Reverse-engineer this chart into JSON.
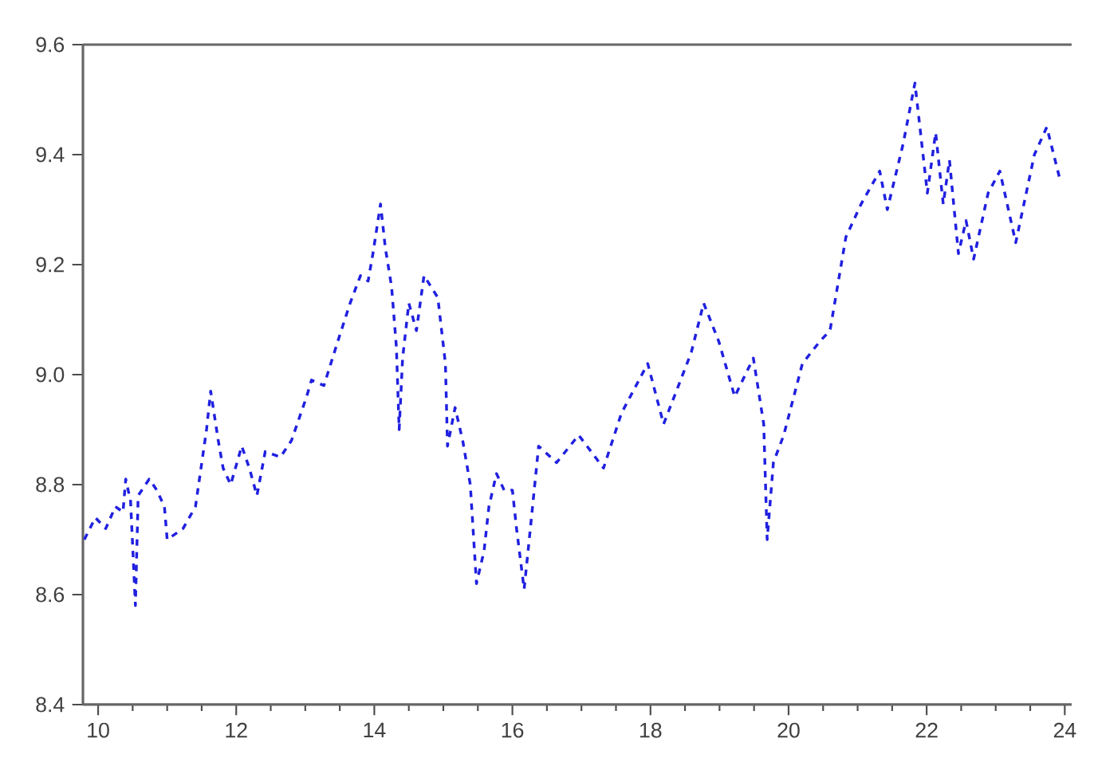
{
  "chart_data": {
    "type": "line",
    "x": [
      9.8,
      9.96,
      10.11,
      10.25,
      10.36,
      10.4,
      10.47,
      10.54,
      10.58,
      10.74,
      10.85,
      10.96,
      11.0,
      11.23,
      11.41,
      11.57,
      11.63,
      11.74,
      11.81,
      11.92,
      12.08,
      12.19,
      12.3,
      12.42,
      12.64,
      12.8,
      13.02,
      13.09,
      13.27,
      13.47,
      13.65,
      13.8,
      13.91,
      13.98,
      14.09,
      14.16,
      14.25,
      14.32,
      14.36,
      14.41,
      14.5,
      14.61,
      14.72,
      14.92,
      15.03,
      15.06,
      15.17,
      15.28,
      15.39,
      15.48,
      15.59,
      15.66,
      15.77,
      15.88,
      16.0,
      16.06,
      16.17,
      16.26,
      16.38,
      16.64,
      16.96,
      17.32,
      17.58,
      17.96,
      18.19,
      18.59,
      18.77,
      18.99,
      19.22,
      19.49,
      19.64,
      19.69,
      19.78,
      19.93,
      20.2,
      20.45,
      20.6,
      20.83,
      21.05,
      21.32,
      21.43,
      21.66,
      21.83,
      22.01,
      22.13,
      22.24,
      22.33,
      22.46,
      22.57,
      22.68,
      22.89,
      23.06,
      23.29,
      23.56,
      23.74,
      23.92
    ],
    "series": [
      {
        "color": "#2020e0",
        "values": [
          8.7,
          8.74,
          8.72,
          8.76,
          8.75,
          8.81,
          8.77,
          8.58,
          8.78,
          8.81,
          8.79,
          8.76,
          8.7,
          8.72,
          8.76,
          8.9,
          8.97,
          8.88,
          8.83,
          8.8,
          8.87,
          8.83,
          8.78,
          8.86,
          8.85,
          8.88,
          8.96,
          8.99,
          8.98,
          9.06,
          9.13,
          9.18,
          9.17,
          9.22,
          9.31,
          9.23,
          9.16,
          9.05,
          8.9,
          9.03,
          9.13,
          9.08,
          9.18,
          9.14,
          9.02,
          8.87,
          8.94,
          8.88,
          8.8,
          8.62,
          8.68,
          8.76,
          8.82,
          8.79,
          8.79,
          8.72,
          8.61,
          8.72,
          8.87,
          8.84,
          8.89,
          8.83,
          8.93,
          9.02,
          8.91,
          9.04,
          9.13,
          9.06,
          8.96,
          9.03,
          8.91,
          8.7,
          8.84,
          8.89,
          9.02,
          9.06,
          9.08,
          9.25,
          9.31,
          9.37,
          9.3,
          9.42,
          9.53,
          9.33,
          9.44,
          9.31,
          9.39,
          9.22,
          9.28,
          9.21,
          9.33,
          9.37,
          9.24,
          9.4,
          9.45,
          9.36
        ]
      }
    ],
    "xlim": [
      9.78,
      24.1
    ],
    "ylim": [
      8.4,
      9.6
    ],
    "xticks": [
      10,
      12,
      14,
      16,
      18,
      20,
      22,
      24
    ],
    "yticks": [
      8.4,
      8.6,
      8.8,
      {
        "value": 9,
        "label": "9.0"
      },
      9.2,
      9.4,
      9.6
    ],
    "grid": false,
    "marker": "none",
    "line_style": "dashed"
  }
}
